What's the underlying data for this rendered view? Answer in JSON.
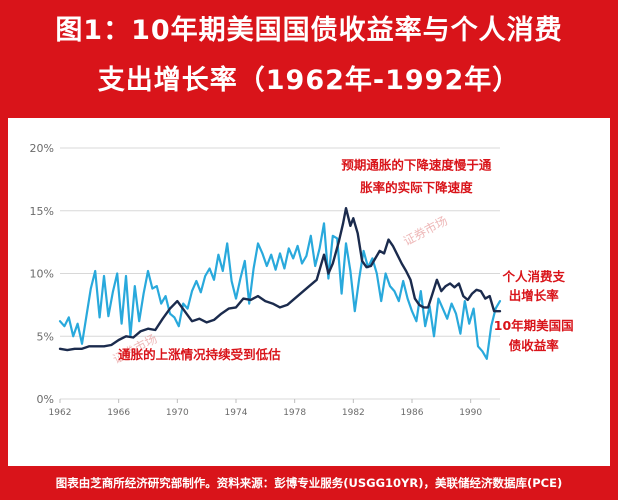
{
  "title": {
    "line1": "图1：10年期美国国债收益率与个人消费",
    "line2": "支出增长率（1962年-1992年）"
  },
  "footer": "图表由芝商所经济研究部制作。资料来源：彭博专业服务(USGG10YR)，美联储经济数据库(PCE)",
  "watermark": "证券市场",
  "colors": {
    "frame": "#d9141a",
    "pce_series": "#29a9dc",
    "yield_series": "#1b2b4d",
    "annotation": "#d9141a",
    "grid": "#d8d8d8"
  },
  "chart_data": {
    "type": "line",
    "x_ticks": [
      "1962",
      "1966",
      "1970",
      "1974",
      "1978",
      "1982",
      "1986",
      "1990"
    ],
    "y_ticks": [
      "0%",
      "5%",
      "10%",
      "15%",
      "20%"
    ],
    "xlim": [
      1962,
      1992
    ],
    "ylim": [
      0,
      20
    ],
    "grid": "horizontal",
    "annotations": [
      {
        "text": "预期通胀的下降速度慢于通",
        "x": 1986.3,
        "y": 18.3
      },
      {
        "text": "胀率的实际下降速度",
        "x": 1986.3,
        "y": 16.5
      },
      {
        "text": "通胀的上涨情况持续受到低估",
        "x": 1971.5,
        "y": 3.2
      },
      {
        "text": "个人消费支",
        "x": 1994.3,
        "y": 9.4
      },
      {
        "text": "出增长率",
        "x": 1994.3,
        "y": 7.9
      },
      {
        "text": "10年期美国国",
        "x": 1994.3,
        "y": 5.5
      },
      {
        "text": "债收益率",
        "x": 1994.3,
        "y": 3.9
      }
    ],
    "series": [
      {
        "name": "个人消费支出增长率",
        "color": "#29a9dc",
        "x": [
          1962.0,
          1962.3,
          1962.6,
          1962.9,
          1963.2,
          1963.5,
          1963.8,
          1964.1,
          1964.4,
          1964.7,
          1965.0,
          1965.3,
          1965.6,
          1965.9,
          1966.2,
          1966.5,
          1966.8,
          1967.1,
          1967.4,
          1967.7,
          1968.0,
          1968.3,
          1968.6,
          1968.9,
          1969.2,
          1969.5,
          1969.8,
          1970.1,
          1970.4,
          1970.7,
          1971.0,
          1971.3,
          1971.6,
          1971.9,
          1972.2,
          1972.5,
          1972.8,
          1973.1,
          1973.4,
          1973.7,
          1974.0,
          1974.3,
          1974.6,
          1974.9,
          1975.2,
          1975.5,
          1975.8,
          1976.1,
          1976.4,
          1976.7,
          1977.0,
          1977.3,
          1977.6,
          1977.9,
          1978.2,
          1978.5,
          1978.8,
          1979.1,
          1979.4,
          1979.7,
          1980.0,
          1980.3,
          1980.6,
          1980.9,
          1981.2,
          1981.5,
          1981.8,
          1982.1,
          1982.4,
          1982.7,
          1983.0,
          1983.3,
          1983.6,
          1983.9,
          1984.2,
          1984.5,
          1984.8,
          1985.1,
          1985.4,
          1985.7,
          1986.0,
          1986.3,
          1986.6,
          1986.9,
          1987.2,
          1987.5,
          1987.8,
          1988.1,
          1988.4,
          1988.7,
          1989.0,
          1989.3,
          1989.6,
          1989.9,
          1990.2,
          1990.5,
          1990.8,
          1991.1,
          1991.4,
          1991.7,
          1992.0
        ],
        "values": [
          6.2,
          5.8,
          6.5,
          5.0,
          6.0,
          4.4,
          6.6,
          8.8,
          10.2,
          6.5,
          9.8,
          6.6,
          8.5,
          10.0,
          6.0,
          9.8,
          5.0,
          9.0,
          6.2,
          8.4,
          10.2,
          8.8,
          9.0,
          7.6,
          8.2,
          6.8,
          6.5,
          5.8,
          7.6,
          7.2,
          8.6,
          9.4,
          8.5,
          9.8,
          10.4,
          9.5,
          11.5,
          10.2,
          12.4,
          9.4,
          8.0,
          9.6,
          11.0,
          7.6,
          10.4,
          12.4,
          11.6,
          10.6,
          11.5,
          10.3,
          11.6,
          10.4,
          12.0,
          11.2,
          12.2,
          10.8,
          11.4,
          13.0,
          10.6,
          12.0,
          14.0,
          9.6,
          13.0,
          12.8,
          8.4,
          12.4,
          10.2,
          7.0,
          9.6,
          11.8,
          10.5,
          11.2,
          10.0,
          7.8,
          10.0,
          9.0,
          8.6,
          7.8,
          9.4,
          8.0,
          7.0,
          6.2,
          8.6,
          5.8,
          7.4,
          5.0,
          8.0,
          7.2,
          6.4,
          7.6,
          6.8,
          5.2,
          7.8,
          6.0,
          7.2,
          4.2,
          3.8,
          3.2,
          5.8,
          7.2,
          7.8
        ]
      },
      {
        "name": "10年期美国国债收益率",
        "color": "#1b2b4d",
        "x": [
          1962.0,
          1962.5,
          1963.0,
          1963.5,
          1964.0,
          1964.5,
          1965.0,
          1965.5,
          1966.0,
          1966.5,
          1967.0,
          1967.5,
          1968.0,
          1968.5,
          1969.0,
          1969.5,
          1970.0,
          1970.5,
          1971.0,
          1971.5,
          1972.0,
          1972.5,
          1973.0,
          1973.5,
          1974.0,
          1974.5,
          1975.0,
          1975.5,
          1976.0,
          1976.5,
          1977.0,
          1977.5,
          1978.0,
          1978.5,
          1979.0,
          1979.5,
          1980.0,
          1980.3,
          1980.6,
          1981.0,
          1981.3,
          1981.5,
          1981.8,
          1982.0,
          1982.3,
          1982.6,
          1982.9,
          1983.2,
          1983.5,
          1983.8,
          1984.1,
          1984.4,
          1984.7,
          1985.0,
          1985.3,
          1985.6,
          1985.9,
          1986.2,
          1986.5,
          1986.8,
          1987.1,
          1987.4,
          1987.7,
          1988.0,
          1988.3,
          1988.6,
          1988.9,
          1989.2,
          1989.5,
          1989.8,
          1990.1,
          1990.4,
          1990.7,
          1991.0,
          1991.3,
          1991.6,
          1992.0
        ],
        "values": [
          4.0,
          3.9,
          4.0,
          4.0,
          4.2,
          4.2,
          4.2,
          4.3,
          4.7,
          5.0,
          4.9,
          5.4,
          5.6,
          5.5,
          6.4,
          7.2,
          7.8,
          7.0,
          6.2,
          6.4,
          6.1,
          6.3,
          6.8,
          7.2,
          7.3,
          8.0,
          7.9,
          8.2,
          7.8,
          7.6,
          7.3,
          7.5,
          8.0,
          8.5,
          9.0,
          9.5,
          11.5,
          10.0,
          10.8,
          12.5,
          14.0,
          15.2,
          13.8,
          14.4,
          13.2,
          11.0,
          10.5,
          10.6,
          11.2,
          11.8,
          11.6,
          12.7,
          12.2,
          11.5,
          10.8,
          10.2,
          9.5,
          8.0,
          7.5,
          7.3,
          7.3,
          8.4,
          9.5,
          8.6,
          9.0,
          9.2,
          8.9,
          9.2,
          8.2,
          7.9,
          8.4,
          8.7,
          8.6,
          8.0,
          8.2,
          7.0,
          7.0
        ]
      }
    ]
  }
}
